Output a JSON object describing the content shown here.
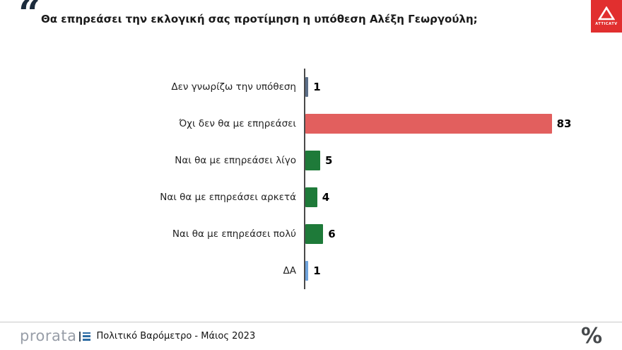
{
  "header": {
    "quote_glyph": "“",
    "title": "Θα επηρεάσει την εκλογική σας προτίμηση η υπόθεση Αλέξη Γεωργούλη;"
  },
  "attica_logo": {
    "label": "ATTICATV"
  },
  "chart_data": {
    "type": "bar",
    "orientation": "horizontal",
    "title": "Θα επηρεάσει την εκλογική σας προτίμηση η υπόθεση Αλέξη Γεωργούλη;",
    "categories": [
      "Δεν γνωρίζω την υπόθεση",
      "Όχι δεν θα με επηρεάσει",
      "Ναι θα με επηρεάσει λίγο",
      "Ναι θα με επηρεάσει αρκετά",
      "Ναι θα με επηρεάσει πολύ",
      "ΔΑ"
    ],
    "values": [
      1,
      83,
      5,
      4,
      6,
      1
    ],
    "bar_colors": [
      "#5b6e87",
      "#e25f5e",
      "#1e7a39",
      "#1e7a39",
      "#1e7a39",
      "#6fa3dc"
    ],
    "xlim": [
      0,
      100
    ],
    "value_labels_shown": true,
    "axis_color": "#4a4a4a",
    "legend": "none",
    "grid": false
  },
  "footer": {
    "brand": "prorata",
    "caption": "Πολιτικό Βαρόμετρο - Μάιος 2023",
    "percent_glyph": "%"
  }
}
